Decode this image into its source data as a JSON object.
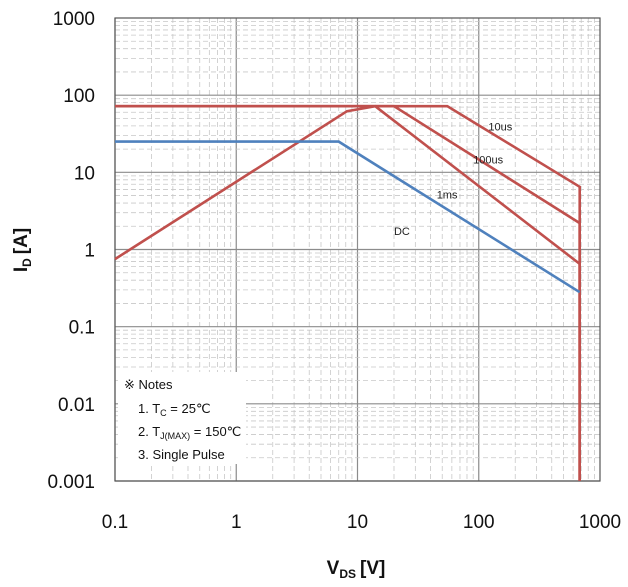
{
  "chart_data": {
    "type": "line",
    "title": "",
    "x_scale": "log",
    "y_scale": "log",
    "xlim": [
      0.1,
      1000
    ],
    "ylim": [
      0.001,
      1000
    ],
    "grid": true,
    "x_ticks": [
      "0.1",
      "1",
      "10",
      "100",
      "1000"
    ],
    "y_ticks": [
      "1000",
      "100",
      "10",
      "1",
      "0.1",
      "0.01",
      "0.001"
    ],
    "xlabel": {
      "main": "V",
      "sub": "DS",
      "unit": "[V]"
    },
    "ylabel": {
      "main": "I",
      "sub": "D",
      "unit": "[A]"
    },
    "series": [
      {
        "name": "10us",
        "color": "#c0504d",
        "x": [
          0.1,
          55,
          680,
          680
        ],
        "y": [
          72,
          72,
          6.5,
          0.001
        ]
      },
      {
        "name": "100us",
        "color": "#c0504d",
        "x": [
          0.1,
          20,
          680,
          680
        ],
        "y": [
          72,
          72,
          2.2,
          0.001
        ]
      },
      {
        "name": "1ms",
        "color": "#c0504d",
        "x": [
          0.1,
          8.2,
          14,
          680,
          680
        ],
        "y": [
          0.75,
          62,
          72,
          0.65,
          0.001
        ]
      },
      {
        "name": "DC",
        "color": "#4f81bd",
        "x": [
          0.1,
          7,
          680
        ],
        "y": [
          25,
          25,
          0.28
        ]
      }
    ],
    "series_labels": [
      {
        "text": "10us",
        "x": 120,
        "y": 35
      },
      {
        "text": "100us",
        "x": 90,
        "y": 13
      },
      {
        "text": "1ms",
        "x": 45,
        "y": 4.6
      },
      {
        "text": "DC",
        "x": 20,
        "y": 1.55
      }
    ],
    "notes": {
      "header": "※ Notes",
      "line1": {
        "prefix": "1. T",
        "sub": "C",
        "suffix": " = 25℃"
      },
      "line2": {
        "prefix": "2. T",
        "sub": "J(MAX)",
        "suffix": " = 150℃"
      },
      "line3": "3. Single Pulse"
    }
  }
}
